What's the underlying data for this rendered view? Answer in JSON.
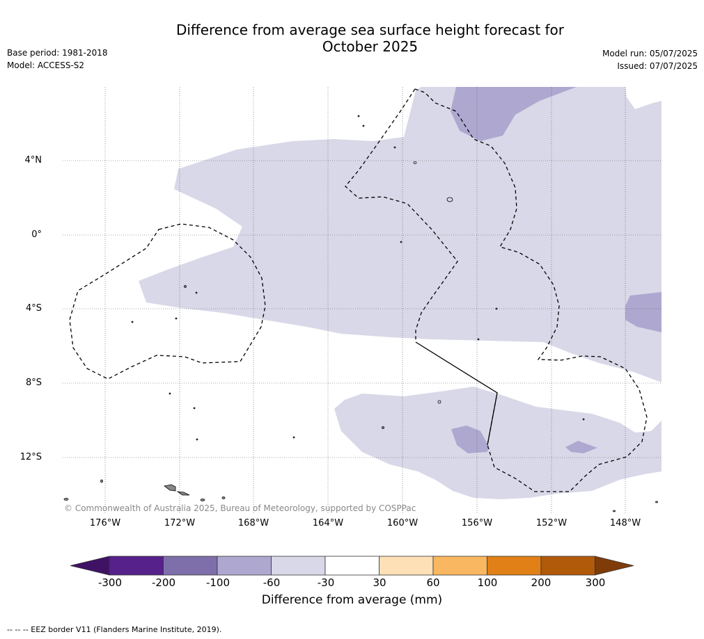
{
  "title_line1": "Difference from average sea surface height forecast for",
  "title_line2": "October 2025",
  "meta_left": {
    "base_period": "Base period: 1981-2018",
    "model": "Model: ACCESS-S2"
  },
  "meta_right": {
    "model_run": "Model run: 05/07/2025",
    "issued": "Issued: 07/07/2025"
  },
  "lat_labels": [
    "4°N",
    "0°",
    "4°S",
    "8°S",
    "12°S"
  ],
  "lon_labels": [
    "176°W",
    "172°W",
    "168°W",
    "164°W",
    "160°W",
    "156°W",
    "152°W",
    "148°W"
  ],
  "credit": "© Commonwealth of Australia 2025, Bureau of Meteorology, supported by COSPPac",
  "colorbar": {
    "title": "Difference from average (mm)",
    "tick_labels": [
      "-300",
      "-200",
      "-100",
      "-60",
      "-30",
      "30",
      "60",
      "100",
      "200",
      "300"
    ],
    "colors": [
      "#3f1266",
      "#56218a",
      "#7e6fab",
      "#aea8d0",
      "#d8d8e8",
      "#ffffff",
      "#fde0b5",
      "#f8b760",
      "#e08016",
      "#b15a0a",
      "#7f3c09"
    ]
  },
  "footnote": "--  --  -- EEZ border V11 (Flanders Marine Institute, 2019).",
  "colors": {
    "weak_negative": "#d8d8e8",
    "moderate_negative": "#aea8d0"
  }
}
